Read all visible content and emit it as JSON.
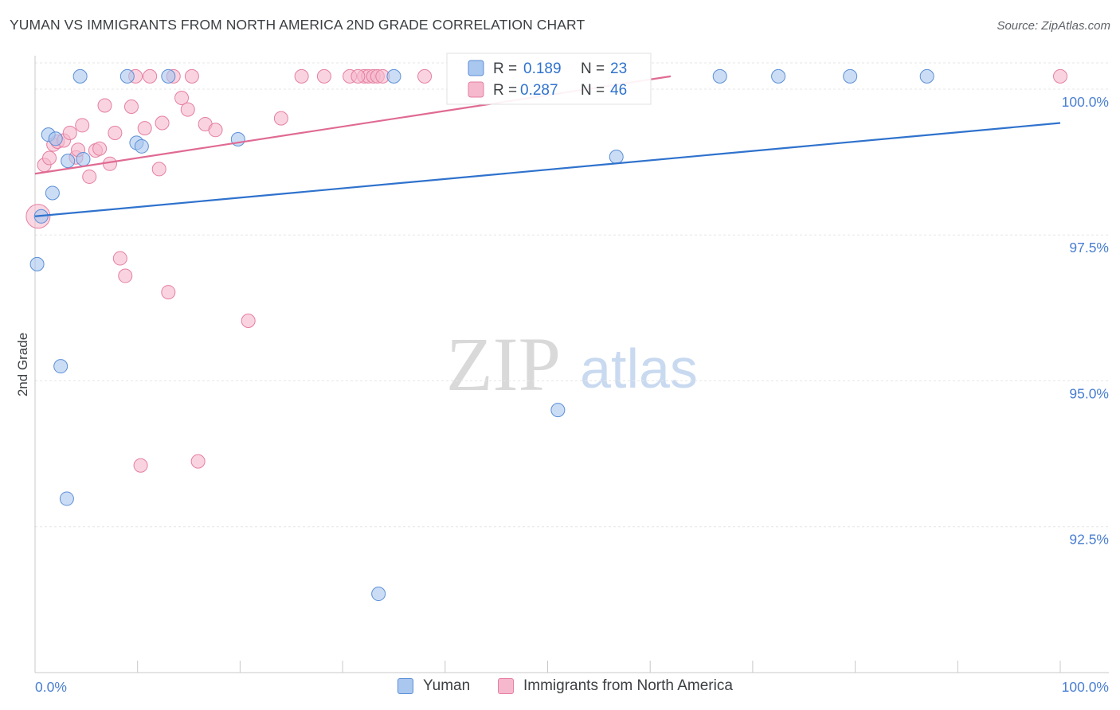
{
  "header": {
    "title": "YUMAN VS IMMIGRANTS FROM NORTH AMERICA 2ND GRADE CORRELATION CHART",
    "source": "Source: ZipAtlas.com"
  },
  "watermark": {
    "zip": "ZIP",
    "atlas": "atlas"
  },
  "chart_data": {
    "type": "scatter",
    "title": "YUMAN VS IMMIGRANTS FROM NORTH AMERICA 2ND GRADE CORRELATION CHART",
    "xlabel": "",
    "ylabel": "2nd Grade",
    "xlim": [
      0,
      100
    ],
    "ylim": [
      90.0,
      100.45
    ],
    "x_tick_labels": [
      "0.0%",
      "100.0%"
    ],
    "y_ticks": [
      100.0,
      97.5,
      95.0,
      92.5
    ],
    "y_tick_labels": [
      "100.0%",
      "97.5%",
      "95.0%",
      "92.5%"
    ],
    "grid": true,
    "legend_position": "top-center",
    "series": [
      {
        "name": "Yuman",
        "r_label": "R =",
        "r_value": "0.189",
        "n_label": "N =",
        "n_value": "23",
        "fill": "#a9c7ef",
        "stroke": "#5b8fd6",
        "line_color": "#2f72cd",
        "trend": {
          "x": [
            0,
            100
          ],
          "y": [
            97.82,
            99.42
          ]
        },
        "points": [
          {
            "x": 0.2,
            "y": 97.0
          },
          {
            "x": 0.6,
            "y": 97.82
          },
          {
            "x": 1.3,
            "y": 99.22
          },
          {
            "x": 1.7,
            "y": 98.22
          },
          {
            "x": 2.0,
            "y": 99.15
          },
          {
            "x": 2.5,
            "y": 95.25
          },
          {
            "x": 3.1,
            "y": 92.98
          },
          {
            "x": 3.2,
            "y": 98.77
          },
          {
            "x": 4.4,
            "y": 100.22
          },
          {
            "x": 4.7,
            "y": 98.8
          },
          {
            "x": 9.0,
            "y": 100.22
          },
          {
            "x": 9.9,
            "y": 99.08
          },
          {
            "x": 10.4,
            "y": 99.02
          },
          {
            "x": 13.0,
            "y": 100.22
          },
          {
            "x": 19.8,
            "y": 99.14
          },
          {
            "x": 33.5,
            "y": 91.35
          },
          {
            "x": 35.0,
            "y": 100.22
          },
          {
            "x": 51.0,
            "y": 94.5
          },
          {
            "x": 56.7,
            "y": 98.84
          },
          {
            "x": 66.8,
            "y": 100.22
          },
          {
            "x": 72.5,
            "y": 100.22
          },
          {
            "x": 79.5,
            "y": 100.22
          },
          {
            "x": 87.0,
            "y": 100.22
          }
        ]
      },
      {
        "name": "Immigrants from North America",
        "r_label": "R =",
        "r_value": "0.287",
        "n_label": "N =",
        "n_value": "46",
        "fill": "#f5b8cc",
        "stroke": "#e57fa0",
        "line_color": "#e06a93",
        "trend": {
          "x": [
            0,
            62
          ],
          "y": [
            98.55,
            100.22
          ]
        },
        "points": [
          {
            "x": 0.3,
            "y": 97.82,
            "big": true
          },
          {
            "x": 0.9,
            "y": 98.7
          },
          {
            "x": 1.4,
            "y": 98.82
          },
          {
            "x": 1.8,
            "y": 99.05
          },
          {
            "x": 2.2,
            "y": 99.1
          },
          {
            "x": 2.8,
            "y": 99.12
          },
          {
            "x": 3.4,
            "y": 99.25
          },
          {
            "x": 4.0,
            "y": 98.83
          },
          {
            "x": 4.2,
            "y": 98.96
          },
          {
            "x": 4.6,
            "y": 99.38
          },
          {
            "x": 5.3,
            "y": 98.5
          },
          {
            "x": 5.9,
            "y": 98.95
          },
          {
            "x": 6.3,
            "y": 98.98
          },
          {
            "x": 6.8,
            "y": 99.72
          },
          {
            "x": 7.3,
            "y": 98.72
          },
          {
            "x": 7.8,
            "y": 99.25
          },
          {
            "x": 8.3,
            "y": 97.1
          },
          {
            "x": 8.8,
            "y": 96.8
          },
          {
            "x": 9.4,
            "y": 99.7
          },
          {
            "x": 9.8,
            "y": 100.22
          },
          {
            "x": 10.3,
            "y": 93.55
          },
          {
            "x": 10.7,
            "y": 99.33
          },
          {
            "x": 11.2,
            "y": 100.22
          },
          {
            "x": 12.1,
            "y": 98.63
          },
          {
            "x": 12.4,
            "y": 99.42
          },
          {
            "x": 13.0,
            "y": 96.52
          },
          {
            "x": 13.5,
            "y": 100.22
          },
          {
            "x": 14.3,
            "y": 99.85
          },
          {
            "x": 14.9,
            "y": 99.65
          },
          {
            "x": 15.3,
            "y": 100.22
          },
          {
            "x": 15.9,
            "y": 93.62
          },
          {
            "x": 16.6,
            "y": 99.4
          },
          {
            "x": 17.6,
            "y": 99.3
          },
          {
            "x": 20.8,
            "y": 96.03
          },
          {
            "x": 24.0,
            "y": 99.5
          },
          {
            "x": 26.0,
            "y": 100.22
          },
          {
            "x": 28.2,
            "y": 100.22
          },
          {
            "x": 30.7,
            "y": 100.22
          },
          {
            "x": 32.1,
            "y": 100.22
          },
          {
            "x": 32.5,
            "y": 100.22
          },
          {
            "x": 33.0,
            "y": 100.22
          },
          {
            "x": 33.4,
            "y": 100.22
          },
          {
            "x": 33.9,
            "y": 100.22
          },
          {
            "x": 38.0,
            "y": 100.22
          },
          {
            "x": 100.0,
            "y": 100.22
          },
          {
            "x": 31.5,
            "y": 100.22
          }
        ]
      }
    ]
  }
}
